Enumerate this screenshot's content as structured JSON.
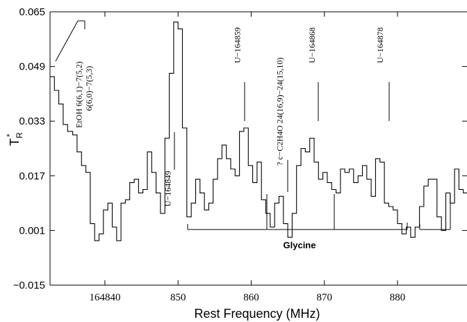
{
  "chart_data": {
    "type": "line",
    "step": true,
    "title": "",
    "xlabel": "Rest Frequency (MHz)",
    "ylabel": "T",
    "ylabel_sup": "*",
    "ylabel_sub": "R",
    "xlim": [
      164832.5,
      164889.5
    ],
    "ylim": [
      -0.015,
      0.065
    ],
    "y_ticks": [
      {
        "value": -0.015,
        "label": "−0.015"
      },
      {
        "value": 0.001,
        "label": "0.001"
      },
      {
        "value": 0.017,
        "label": "0.017"
      },
      {
        "value": 0.033,
        "label": "0.033"
      },
      {
        "value": 0.049,
        "label": "0.049"
      },
      {
        "value": 0.065,
        "label": "0.065"
      }
    ],
    "x_ticks": [
      {
        "value": 164840,
        "label": "164840"
      },
      {
        "value": 164850,
        "label": "850"
      },
      {
        "value": 164860,
        "label": "860"
      },
      {
        "value": 164870,
        "label": "870"
      },
      {
        "value": 164880,
        "label": "880"
      }
    ],
    "series": [
      {
        "x": [
          164832.5,
          164833.1,
          164833.7,
          164834.3,
          164834.9,
          164835.6,
          164836.2,
          164836.8,
          164837.4,
          164838.0,
          164838.6,
          164839.2,
          164839.8,
          164840.4,
          164841.0,
          164841.6,
          164842.2,
          164842.8,
          164843.4,
          164844.0,
          164844.6,
          164845.2,
          164845.8,
          164846.4,
          164847.0,
          164847.6,
          164848.2,
          164848.8,
          164849.4,
          164850.0,
          164850.6,
          164851.2,
          164851.8,
          164852.4,
          164853.0,
          164853.6,
          164854.2,
          164854.8,
          164855.4,
          164856.0,
          164856.6,
          164857.2,
          164857.8,
          164858.4,
          164859.0,
          164859.6,
          164860.2,
          164860.8,
          164861.4,
          164862.0,
          164862.6,
          164863.2,
          164863.8,
          164864.4,
          164865.0,
          164865.6,
          164866.2,
          164866.8,
          164867.4,
          164868.0,
          164868.6,
          164869.2,
          164869.8,
          164870.4,
          164871.0,
          164871.6,
          164872.2,
          164872.8,
          164873.4,
          164874.0,
          164874.6,
          164875.2,
          164875.8,
          164876.4,
          164877.0,
          164877.6,
          164878.2,
          164878.8,
          164879.4,
          164880.0,
          164880.6,
          164881.2,
          164881.8,
          164882.4,
          164883.0,
          164883.6,
          164884.2,
          164884.8,
          164885.4,
          164886.0,
          164886.6,
          164887.2,
          164887.8,
          164888.4,
          164889.0
        ],
        "y": [
          0.046,
          0.042,
          0.038,
          0.032,
          0.03,
          0.029,
          0.024,
          0.02,
          0.018,
          0.003,
          -0.002,
          0.0,
          0.007,
          0.009,
          0.002,
          -0.002,
          0.009,
          0.01,
          0.015,
          0.016,
          0.012,
          0.013,
          0.024,
          0.018,
          0.012,
          0.006,
          0.028,
          0.047,
          0.062,
          0.06,
          0.031,
          0.005,
          0.009,
          0.016,
          0.012,
          0.007,
          0.009,
          0.016,
          0.022,
          0.026,
          0.022,
          0.019,
          0.017,
          0.03,
          0.031,
          0.02,
          0.015,
          0.021,
          0.01,
          0.006,
          0.002,
          0.009,
          0.011,
          0.003,
          -0.001,
          0.006,
          0.02,
          0.025,
          0.024,
          0.028,
          0.021,
          0.016,
          0.018,
          0.015,
          0.013,
          0.012,
          0.019,
          0.018,
          0.019,
          0.015,
          0.017,
          0.02,
          0.016,
          0.011,
          0.022,
          0.021,
          0.009,
          0.008,
          0.007,
          0.003,
          0.0,
          0.002,
          -0.001,
          0.002,
          0.008,
          0.014,
          0.016,
          0.016,
          0.005,
          0.001,
          0.012,
          0.009,
          0.019,
          0.013,
          0.012
        ]
      }
    ],
    "annotations": [
      {
        "text": "EtOH  6(6,1)−7(5,2)",
        "x": 164836.8,
        "y": 0.031
      },
      {
        "text": "6(6,0)−7(5,3)",
        "x": 164838.2,
        "y": 0.036
      },
      {
        "text": "U−164849",
        "x": 164849.0,
        "y": 0.008
      },
      {
        "text": "U−164859",
        "x": 164858.5,
        "y": 0.05
      },
      {
        "text": "? c−C2H4O  24(16,9)−24(15,10)",
        "x": 164864.3,
        "y": 0.02
      },
      {
        "text": "U−164868",
        "x": 164868.7,
        "y": 0.05
      },
      {
        "text": "U−164878",
        "x": 164878.0,
        "y": 0.05
      }
    ],
    "bracket_label": "Glycine",
    "grid": false,
    "legend": "none"
  }
}
